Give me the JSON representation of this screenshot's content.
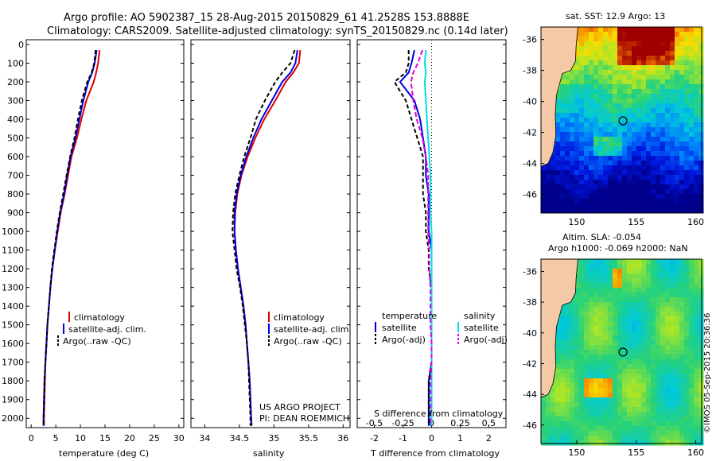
{
  "header": {
    "line1": "Argo profile: AO 5902387_15 28-Aug-2015 20150829_61 41.2528S 153.8888E",
    "line2": "Climatology: CARS2009. Satellite-adjusted climatology: synTS_20150829.nc (0.14d later)"
  },
  "colors": {
    "climatology": "#e00000",
    "satellite": "#0000e0",
    "argo": "#000000",
    "salinity_satellite": "#00e0e0",
    "salinity_argo": "#e000e0",
    "land": "#f5c9a6"
  },
  "chart_data": [
    {
      "id": "temperature",
      "type": "line",
      "xlabel": "temperature (deg C)",
      "ylabel": "",
      "xlim": [
        -1,
        31
      ],
      "ylim": [
        2050,
        0
      ],
      "xticks": [
        "0",
        "5",
        "10",
        "15",
        "20",
        "25",
        "30"
      ],
      "yticks": [
        "0",
        "100",
        "200",
        "300",
        "400",
        "500",
        "600",
        "700",
        "800",
        "900",
        "1000",
        "1100",
        "1200",
        "1300",
        "1400",
        "1500",
        "1600",
        "1700",
        "1800",
        "1900",
        "2000"
      ],
      "depth": [
        30,
        100,
        150,
        200,
        300,
        400,
        500,
        600,
        700,
        800,
        900,
        1000,
        1100,
        1200,
        1300,
        1400,
        1500,
        1600,
        1700,
        1800,
        1900,
        2000,
        2040
      ],
      "legend": [
        "climatology",
        "satellite-adj. clim.",
        "Argo(..raw -QC)"
      ],
      "series": [
        {
          "name": "climatology",
          "values": [
            13.9,
            13.6,
            13.2,
            12.7,
            11.2,
            10.2,
            9.3,
            8.2,
            7.5,
            6.8,
            6.0,
            5.4,
            4.8,
            4.3,
            3.9,
            3.6,
            3.3,
            3.1,
            2.9,
            2.8,
            2.7,
            2.6,
            2.6
          ]
        },
        {
          "name": "satellite-adj. clim.",
          "values": [
            13.3,
            12.9,
            12.4,
            11.6,
            10.6,
            9.8,
            9.0,
            8.0,
            7.3,
            6.7,
            5.9,
            5.3,
            4.8,
            4.3,
            3.9,
            3.6,
            3.3,
            3.1,
            2.9,
            2.7,
            2.6,
            2.5,
            2.5
          ]
        },
        {
          "name": "Argo(..raw -QC)",
          "values": [
            13.1,
            12.8,
            12.3,
            11.4,
            10.3,
            9.5,
            8.8,
            7.9,
            7.2,
            6.5,
            5.8,
            5.2,
            4.7,
            4.2,
            3.9,
            3.6,
            3.3,
            3.1,
            2.9,
            2.7,
            2.6,
            2.5,
            2.5
          ]
        }
      ]
    },
    {
      "id": "salinity",
      "type": "line",
      "xlabel": "salinity",
      "ylim": [
        2050,
        0
      ],
      "xlim": [
        33.8,
        36.1
      ],
      "xticks": [
        "34",
        "34.5",
        "35",
        "35.5",
        "36"
      ],
      "depth": [
        30,
        100,
        150,
        200,
        300,
        400,
        500,
        600,
        700,
        800,
        900,
        1000,
        1100,
        1200,
        1300,
        1400,
        1500,
        1600,
        1700,
        1800,
        1900,
        2000,
        2040
      ],
      "legend": [
        "climatology",
        "satellite-adj. clim.",
        "Argo(..raw -QC)"
      ],
      "annotation": [
        "US ARGO PROJECT",
        "PI: DEAN ROEMMICH"
      ],
      "series": [
        {
          "name": "climatology",
          "values": [
            35.38,
            35.36,
            35.28,
            35.17,
            35.02,
            34.86,
            34.73,
            34.62,
            34.53,
            34.47,
            34.44,
            34.43,
            34.45,
            34.48,
            34.52,
            34.56,
            34.59,
            34.61,
            34.63,
            34.65,
            34.66,
            34.67,
            34.68
          ]
        },
        {
          "name": "satellite-adj. clim.",
          "values": [
            35.34,
            35.31,
            35.24,
            35.12,
            34.97,
            34.82,
            34.7,
            34.6,
            34.52,
            34.46,
            34.43,
            34.43,
            34.45,
            34.48,
            34.52,
            34.56,
            34.59,
            34.61,
            34.63,
            34.65,
            34.66,
            34.67,
            34.67
          ]
        },
        {
          "name": "Argo(..raw -QC)",
          "values": [
            35.3,
            35.24,
            35.12,
            35.02,
            34.87,
            34.74,
            34.66,
            34.57,
            34.5,
            34.44,
            34.41,
            34.4,
            34.43,
            34.46,
            34.51,
            34.55,
            34.58,
            34.61,
            34.63,
            34.64,
            34.65,
            34.66,
            34.66
          ]
        }
      ]
    },
    {
      "id": "difference",
      "type": "line",
      "xlabel": "T difference from climatology",
      "xlabel_top": "S difference from climatology",
      "ylim": [
        2050,
        0
      ],
      "xlim": [
        -2.6,
        2.6
      ],
      "xticks": [
        "-2",
        "-1",
        "0",
        "1",
        "2"
      ],
      "xticks_top": [
        "-0.5",
        "-0.25",
        "0",
        "0.25",
        "0.5"
      ],
      "depth": [
        30,
        100,
        150,
        200,
        300,
        400,
        500,
        600,
        700,
        800,
        900,
        1000,
        1100,
        1200,
        1300,
        1400,
        1500,
        1600,
        1700,
        1800,
        1900,
        2000,
        2040
      ],
      "legend_temperature": [
        "temperature",
        "satellite",
        "Argo(-adj)"
      ],
      "legend_salinity": [
        "salinity",
        "satellite",
        "Argo(-adj)"
      ],
      "series": [
        {
          "name": "temperature satellite",
          "values": [
            -0.6,
            -0.7,
            -0.8,
            -1.1,
            -0.6,
            -0.4,
            -0.3,
            -0.2,
            -0.2,
            -0.1,
            -0.1,
            -0.1,
            0,
            0,
            0,
            0,
            0,
            0,
            0,
            -0.1,
            -0.1,
            -0.1,
            -0.1
          ]
        },
        {
          "name": "temperature Argo(-adj)",
          "values": [
            -0.8,
            -0.8,
            -0.9,
            -1.3,
            -0.9,
            -0.7,
            -0.5,
            -0.3,
            -0.3,
            -0.3,
            -0.2,
            -0.2,
            -0.1,
            -0.1,
            0,
            0,
            0,
            0,
            0,
            -0.1,
            -0.1,
            -0.1,
            -0.1
          ]
        },
        {
          "name": "salinity satellite",
          "values": [
            -0.05,
            -0.06,
            -0.05,
            -0.06,
            -0.05,
            -0.04,
            -0.03,
            -0.02,
            -0.01,
            -0.01,
            -0.01,
            0,
            0,
            0,
            0,
            0,
            0,
            0,
            0,
            0,
            0,
            0,
            0
          ]
        },
        {
          "name": "salinity Argo(-adj)",
          "values": [
            -0.08,
            -0.12,
            -0.16,
            -0.18,
            -0.16,
            -0.13,
            -0.08,
            -0.05,
            -0.03,
            -0.03,
            -0.03,
            -0.03,
            -0.02,
            -0.02,
            -0.01,
            -0.01,
            -0.01,
            0,
            0,
            -0.01,
            -0.01,
            -0.01,
            -0.01
          ]
        }
      ]
    },
    {
      "id": "sst_map",
      "type": "heatmap",
      "title": "sat. SST: 12.9 Argo: 13",
      "xticks": [
        "150",
        "155",
        "160"
      ],
      "yticks": [
        "-36",
        "-38",
        "-40",
        "-42",
        "-44",
        "-46"
      ],
      "marker_lon": 153.89,
      "marker_lat": -41.25
    },
    {
      "id": "sla_map",
      "type": "heatmap",
      "title": [
        "Altim. SLA: -0.054",
        "Argo h1000: -0.069 h2000: NaN"
      ],
      "xticks": [
        "150",
        "155",
        "160"
      ],
      "yticks": [
        "-36",
        "-38",
        "-40",
        "-42",
        "-44",
        "-46"
      ],
      "marker_lon": 153.89,
      "marker_lat": -41.25
    }
  ],
  "footer": {
    "credit": "©IMOS 05-Sep-2015 20:36:36"
  }
}
